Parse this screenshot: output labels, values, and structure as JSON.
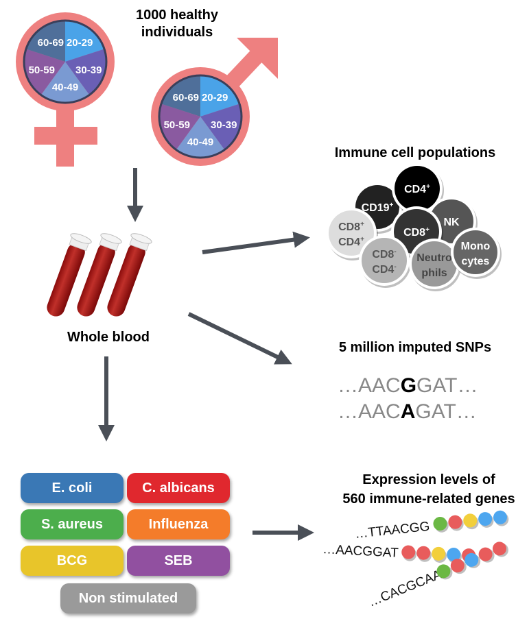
{
  "title": {
    "line1": "1000 healthy",
    "line2": "individuals"
  },
  "age_groups": [
    "20-29",
    "30-39",
    "40-49",
    "50-59",
    "60-69"
  ],
  "age_colors": [
    "#4aa3e8",
    "#6a5fb5",
    "#7a9ad2",
    "#8a5aa0",
    "#4f6f9a"
  ],
  "symbol_color": "#ee8080",
  "whole_blood": "Whole blood",
  "immune": {
    "title": "Immune cell populations",
    "cells": [
      {
        "l1": "CD19",
        "s1": "+",
        "l2": "",
        "s2": "",
        "color": "#222222",
        "text": "#ffffff"
      },
      {
        "l1": "CD4",
        "s1": "+",
        "l2": "",
        "s2": "",
        "color": "#000000",
        "text": "#ffffff"
      },
      {
        "l1": "NK",
        "s1": "",
        "l2": "",
        "s2": "",
        "color": "#555555",
        "text": "#ffffff"
      },
      {
        "l1": "CD8",
        "s1": "+",
        "l2": "CD4",
        "s2": "+",
        "color": "#dddddd",
        "text": "#555555"
      },
      {
        "l1": "CD8",
        "s1": "+",
        "l2": "",
        "s2": "",
        "color": "#333333",
        "text": "#ffffff"
      },
      {
        "l1": "CD8",
        "s1": "-",
        "l2": "CD4",
        "s2": "-",
        "color": "#b5b5b5",
        "text": "#555555"
      },
      {
        "l1": "Neutro",
        "s1": "",
        "l2": "phils",
        "s2": "",
        "color": "#999999",
        "text": "#444444"
      },
      {
        "l1": "Mono",
        "s1": "",
        "l2": "cytes",
        "s2": "",
        "color": "#666666",
        "text": "#ffffff"
      }
    ]
  },
  "snps": {
    "title": "5 million imputed SNPs",
    "seq1": {
      "pre": "…AAC",
      "alt": "G",
      "post": "GAT…"
    },
    "seq2": {
      "pre": "…AAC",
      "alt": "A",
      "post": "GAT…"
    }
  },
  "stimuli": [
    {
      "label": "E. coli",
      "color": "#3a78b5"
    },
    {
      "label": "C. albicans",
      "color": "#e0282e"
    },
    {
      "label": "S. aureus",
      "color": "#4cae4c"
    },
    {
      "label": "Influenza",
      "color": "#f47c2a"
    },
    {
      "label": "BCG",
      "color": "#e8c52a"
    },
    {
      "label": "SEB",
      "color": "#9150a0"
    },
    {
      "label": "Non stimulated",
      "color": "#9a9a9a"
    }
  ],
  "expression": {
    "title1": "Expression levels of",
    "title2": "560 immune-related genes",
    "seqs": [
      "…TTAACGG",
      "…AACGGAT",
      "…CACGCAA"
    ],
    "beads": [
      [
        "#6bb844",
        "#e85c5c",
        "#f2cf3c",
        "#4da6ef",
        "#4da6ef"
      ],
      [
        "#e85c5c",
        "#e85c5c",
        "#f2cf3c",
        "#4da6ef",
        "#e85c5c"
      ],
      [
        "#6bb844",
        "#e85c5c",
        "#4da6ef",
        "#e85c5c",
        "#e85c5c"
      ]
    ]
  }
}
